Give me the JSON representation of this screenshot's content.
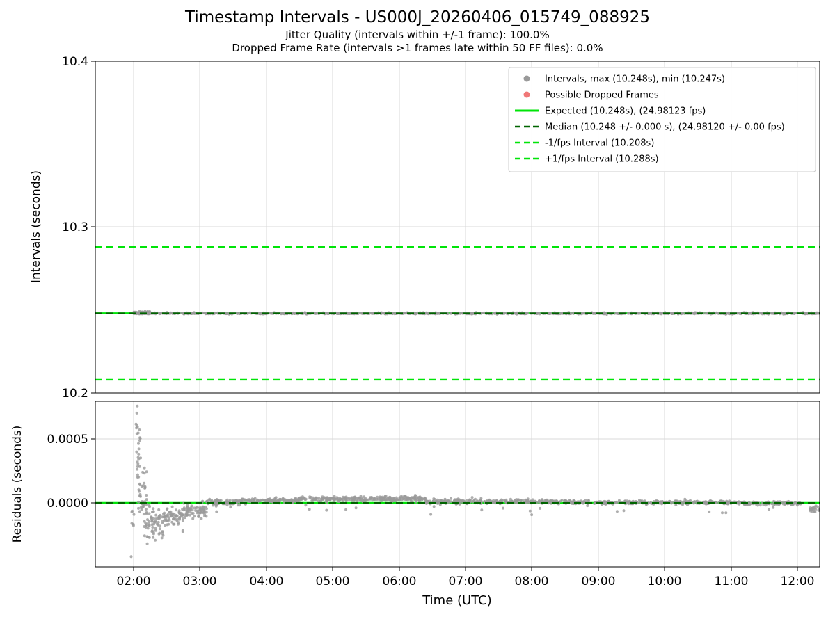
{
  "header": {
    "title": "Timestamp Intervals - US000J_20260406_015749_088925",
    "subtitle_jitter": "Jitter Quality (intervals within +/-1 frame): 100.0%",
    "subtitle_dropped": "Dropped Frame Rate (intervals >1 frames late within 50 FF files): 0.0%"
  },
  "colors": {
    "marker_gray": "#9a9a9a",
    "dropped_red": "#f07878",
    "green_bright": "#00e408",
    "green_dark": "#006400",
    "grid": "#d9d9d9"
  },
  "legend": {
    "entries": [
      {
        "label": "Intervals, max (10.248s), min (10.247s)",
        "marker": "dot",
        "color": "#9a9a9a"
      },
      {
        "label": "Possible Dropped Frames",
        "marker": "dot",
        "color": "#f07878"
      },
      {
        "label": "Expected (10.248s), (24.98123 fps)",
        "marker": "solid-line",
        "color": "#00e408"
      },
      {
        "label": "Median (10.248 +/- 0.000 s), (24.98120 +/- 0.00 fps)",
        "marker": "dashed-line",
        "color": "#006400"
      },
      {
        "label": "-1/fps Interval (10.208s)",
        "marker": "dashed-line",
        "color": "#00e408"
      },
      {
        "label": "+1/fps Interval (10.288s)",
        "marker": "dashed-line",
        "color": "#00e408"
      }
    ]
  },
  "axes": {
    "x": {
      "label": "Time (UTC)",
      "ticks": [
        "02:00",
        "03:00",
        "04:00",
        "05:00",
        "06:00",
        "07:00",
        "08:00",
        "09:00",
        "10:00",
        "11:00",
        "12:00"
      ]
    },
    "top_y": {
      "label": "Intervals (seconds)",
      "ticks": [
        "10.4",
        "10.3",
        "10.2"
      ]
    },
    "bottom_y": {
      "label": "Residuals (seconds)",
      "ticks": [
        "0.0005",
        "0.0000"
      ]
    }
  },
  "chart_data": [
    {
      "type": "scatter",
      "subplot": "intervals",
      "title": "Timestamp Intervals - US000J_20260406_015749_088925",
      "ylabel": "Intervals (seconds)",
      "ylim": [
        10.2,
        10.4
      ],
      "x_hours_utc_range": [
        1.42,
        12.34
      ],
      "grid": true,
      "legend_position": "upper right",
      "stats": {
        "max_s": 10.248,
        "min_s": 10.247,
        "expected_s": 10.248,
        "expected_fps": 24.98123,
        "median_s": 10.248,
        "median_fps": 24.9812,
        "minus_1fps_interval_s": 10.208,
        "plus_1fps_interval_s": 10.288,
        "jitter_quality_pct": 100.0,
        "dropped_frame_rate_pct": 0.0
      },
      "hlines": [
        {
          "name": "expected",
          "value": 10.248,
          "style": "solid",
          "color": "#00e408",
          "width": 2.8,
          "layer": "below"
        },
        {
          "name": "median",
          "value": 10.248,
          "style": "dashed",
          "color": "#006400",
          "width": 2.2,
          "layer": "above"
        },
        {
          "name": "minus-1fps",
          "value": 10.208,
          "style": "dashed",
          "color": "#00e408",
          "width": 2.4,
          "layer": "above"
        },
        {
          "name": "plus-1fps",
          "value": 10.288,
          "style": "dashed",
          "color": "#00e408",
          "width": 2.4,
          "layer": "above"
        }
      ],
      "point_clusters": [
        {
          "t0": 2.0,
          "t1": 2.25,
          "n": 90,
          "mean": 10.2484,
          "sd": 0.0004
        },
        {
          "t0": 2.0,
          "t1": 12.34,
          "n": 1400,
          "mean": 10.248,
          "sd": 0.00022
        }
      ]
    },
    {
      "type": "scatter",
      "subplot": "residuals",
      "ylabel": "Residuals (seconds)",
      "xlabel": "Time (UTC)",
      "ylim": [
        -0.0005,
        0.000793
      ],
      "grid": true,
      "hlines": [
        {
          "name": "expected-zero",
          "value": 0,
          "style": "solid",
          "color": "#00e408",
          "width": 2.4,
          "layer": "below"
        },
        {
          "name": "median-residual",
          "value": 0,
          "style": "dashed",
          "color": "#006400",
          "width": 2.0,
          "layer": "above"
        }
      ],
      "point_clusters": [
        {
          "t0": 1.95,
          "t1": 2.02,
          "n": 6,
          "mean": -0.00013,
          "sd": 5e-05
        },
        {
          "t0": 1.96,
          "t1": 1.97,
          "n": 1,
          "mean": -0.00042,
          "sd": 0.0
        },
        {
          "t0": 2.03,
          "t1": 2.07,
          "n": 8,
          "mean": 0.00062,
          "sd": 8e-05
        },
        {
          "t0": 2.04,
          "t1": 2.12,
          "n": 20,
          "mean": 0.00035,
          "sd": 0.00013
        },
        {
          "t0": 2.07,
          "t1": 2.2,
          "n": 35,
          "mean": 6e-05,
          "sd": 0.00012
        },
        {
          "t0": 2.15,
          "t1": 2.45,
          "n": 70,
          "mean": -0.00015,
          "sd": 6e-05
        },
        {
          "t0": 2.45,
          "t1": 2.75,
          "n": 70,
          "mean": -0.00011,
          "sd": 4e-05
        },
        {
          "t0": 2.75,
          "t1": 3.1,
          "n": 70,
          "mean": -6e-05,
          "sd": 3e-05
        },
        {
          "t0": 3.1,
          "t1": 3.6,
          "n": 90,
          "mean": 5e-06,
          "sd": 1.3e-05
        },
        {
          "t0": 3.6,
          "t1": 4.5,
          "n": 140,
          "mean": 1.8e-05,
          "sd": 1e-05
        },
        {
          "t0": 4.5,
          "t1": 6.4,
          "n": 280,
          "mean": 3e-05,
          "sd": 1e-05
        },
        {
          "t0": 6.4,
          "t1": 7.2,
          "n": 110,
          "mean": 1.2e-05,
          "sd": 1e-05
        },
        {
          "t0": 7.2,
          "t1": 8.6,
          "n": 170,
          "mean": 1e-05,
          "sd": 8e-06
        },
        {
          "t0": 8.6,
          "t1": 10.2,
          "n": 170,
          "mean": 4e-06,
          "sd": 8e-06
        },
        {
          "t0": 10.2,
          "t1": 11.2,
          "n": 110,
          "mean": 2e-06,
          "sd": 8e-06
        },
        {
          "t0": 11.2,
          "t1": 12.05,
          "n": 90,
          "mean": -4e-06,
          "sd": 8e-06
        },
        {
          "t0": 12.18,
          "t1": 12.34,
          "n": 25,
          "mean": -5e-05,
          "sd": 1.2e-05
        },
        {
          "t0": 3.0,
          "t1": 12.0,
          "n": 22,
          "mean": -6e-05,
          "sd": 2e-05
        }
      ]
    }
  ]
}
